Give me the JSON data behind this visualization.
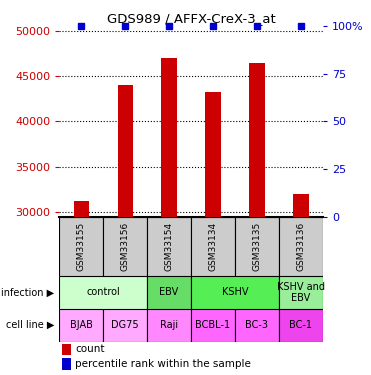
{
  "title": "GDS989 / AFFX-CreX-3_at",
  "samples": [
    "GSM33155",
    "GSM33156",
    "GSM33154",
    "GSM33134",
    "GSM33135",
    "GSM33136"
  ],
  "counts": [
    31200,
    44000,
    47000,
    43200,
    46500,
    32000
  ],
  "percentile_ranks": [
    100,
    100,
    100,
    100,
    100,
    100
  ],
  "ylim_left": [
    29500,
    50500
  ],
  "ylim_right": [
    0,
    100
  ],
  "yticks_left": [
    30000,
    35000,
    40000,
    45000,
    50000
  ],
  "yticks_right": [
    0,
    25,
    50,
    75,
    100
  ],
  "bar_color": "#cc0000",
  "percentile_color": "#0000cc",
  "bar_width": 0.35,
  "infection_labels": [
    {
      "text": "control",
      "span": [
        0,
        2
      ],
      "color": "#ccffcc"
    },
    {
      "text": "EBV",
      "span": [
        2,
        3
      ],
      "color": "#66dd66"
    },
    {
      "text": "KSHV",
      "span": [
        3,
        5
      ],
      "color": "#55ee55"
    },
    {
      "text": "KSHV and\nEBV",
      "span": [
        5,
        6
      ],
      "color": "#99ee99"
    }
  ],
  "cell_line_labels": [
    {
      "text": "BJAB",
      "span": [
        0,
        1
      ],
      "color": "#ffaaff"
    },
    {
      "text": "DG75",
      "span": [
        1,
        2
      ],
      "color": "#ffaaff"
    },
    {
      "text": "Raji",
      "span": [
        2,
        3
      ],
      "color": "#ff88ff"
    },
    {
      "text": "BCBL-1",
      "span": [
        3,
        4
      ],
      "color": "#ff66ff"
    },
    {
      "text": "BC-3",
      "span": [
        4,
        5
      ],
      "color": "#ff66ff"
    },
    {
      "text": "BC-1",
      "span": [
        5,
        6
      ],
      "color": "#ee44ee"
    }
  ],
  "sample_bg_color": "#cccccc",
  "left_label_color": "#cc0000",
  "right_label_color": "#0000cc",
  "left_spine_color": "#000000"
}
